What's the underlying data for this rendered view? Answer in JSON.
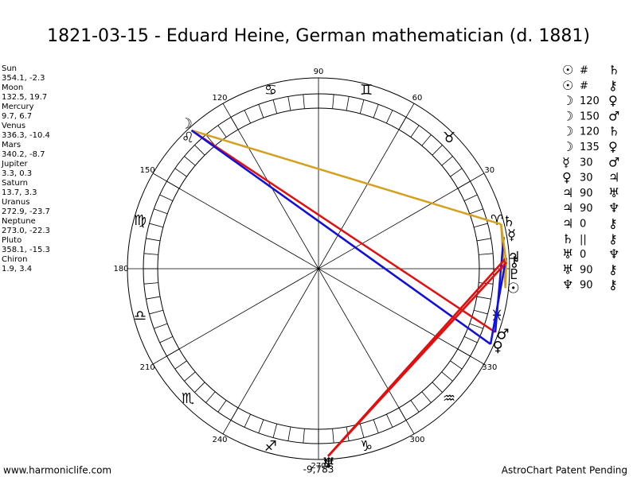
{
  "title": "1821-03-15 - Eduard Heine, German mathematician (d. 1881)",
  "planets": [
    {
      "name": "Sun",
      "glyph": "☉",
      "position": "354.1, -2.3"
    },
    {
      "name": "Moon",
      "glyph": "☽",
      "position": "132.5, 19.7"
    },
    {
      "name": "Mercury",
      "glyph": "☿",
      "position": "9.7, 6.7"
    },
    {
      "name": "Venus",
      "glyph": "♀",
      "position": "336.3, -10.4"
    },
    {
      "name": "Mars",
      "glyph": "♂",
      "position": "340.2, -8.7"
    },
    {
      "name": "Jupiter",
      "glyph": "♃",
      "position": "3.3, 0.3"
    },
    {
      "name": "Saturn",
      "glyph": "♄",
      "position": "13.7, 3.3"
    },
    {
      "name": "Uranus",
      "glyph": "♅",
      "position": "272.9, -23.7"
    },
    {
      "name": "Neptune",
      "glyph": "♆",
      "position": "273.0, -22.3"
    },
    {
      "name": "Pluto",
      "glyph": "♇",
      "position": "358.1, -15.3"
    },
    {
      "name": "Chiron",
      "glyph": "⚷",
      "position": "1.9, 3.4"
    }
  ],
  "aspects": [
    {
      "a": "☉",
      "type": "#",
      "b": "♄",
      "color": "#d4a020"
    },
    {
      "a": "☉",
      "type": "#",
      "b": "⚷",
      "color": "#d4a020"
    },
    {
      "a": "☽",
      "type": "120",
      "b": "♀",
      "color": "#d4a020"
    },
    {
      "a": "☽",
      "type": "150",
      "b": "♂",
      "color": "#e01010"
    },
    {
      "a": "☽",
      "type": "120",
      "b": "♄",
      "color": "#d4a020"
    },
    {
      "a": "☽",
      "type": "135",
      "b": "♀",
      "color": "#1010e0"
    },
    {
      "a": "☿",
      "type": "30",
      "b": "♂",
      "color": "#1010e0"
    },
    {
      "a": "♀",
      "type": "30",
      "b": "♃",
      "color": "#1010e0"
    },
    {
      "a": "♃",
      "type": "90",
      "b": "♅",
      "color": "#e01010"
    },
    {
      "a": "♃",
      "type": "90",
      "b": "♆",
      "color": "#e01010"
    },
    {
      "a": "♃",
      "type": "0",
      "b": "⚷",
      "color": "#1010e0"
    },
    {
      "a": "♄",
      "type": "||",
      "b": "⚷",
      "color": "#d4a020"
    },
    {
      "a": "♅",
      "type": "0",
      "b": "♆",
      "color": "#1010e0"
    },
    {
      "a": "♅",
      "type": "90",
      "b": "⚷",
      "color": "#e01010"
    },
    {
      "a": "♆",
      "type": "90",
      "b": "⚷",
      "color": "#e01010"
    }
  ],
  "degree_labels": [
    30,
    60,
    90,
    120,
    150,
    180,
    210,
    240,
    270,
    300,
    330
  ],
  "signs": [
    "♈",
    "♉",
    "♊",
    "♋",
    "♌",
    "♍",
    "♎",
    "♏",
    "♐",
    "♑",
    "♒",
    "♓"
  ],
  "center_note": "-9,783",
  "footer": {
    "left": "www.harmoniclife.com",
    "right": "AstroChart Patent Pending"
  }
}
